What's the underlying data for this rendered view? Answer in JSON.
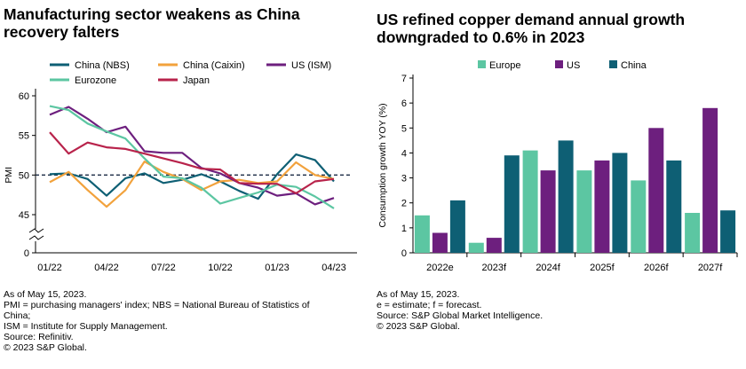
{
  "chart_data": [
    {
      "type": "line",
      "title_lines": [
        "Manufacturing sector weakens as China",
        "recovery falters"
      ],
      "ylabel": "PMI",
      "ylim": [
        40,
        60
      ],
      "y_ticks": [
        45,
        50,
        55,
        60
      ],
      "y_zero_label": "0",
      "axis_break": true,
      "reference_line": 50,
      "x_labels": [
        "01/22",
        "04/22",
        "07/22",
        "10/22",
        "01/23",
        "04/23"
      ],
      "x_label_indices": [
        0,
        3,
        6,
        9,
        12,
        15
      ],
      "legend": "top",
      "series": [
        {
          "name": "China (NBS)",
          "color": "#0e5f74",
          "values": [
            50.1,
            50.2,
            49.5,
            47.4,
            49.6,
            50.2,
            49.0,
            49.4,
            50.1,
            49.2,
            48.0,
            47.0,
            50.1,
            52.6,
            51.9,
            49.2
          ]
        },
        {
          "name": "China (Caixin)",
          "color": "#f2a23c",
          "values": [
            49.1,
            50.4,
            48.1,
            46.0,
            48.1,
            51.7,
            50.4,
            49.5,
            48.1,
            49.2,
            49.4,
            49.0,
            49.2,
            51.6,
            50.0,
            49.5
          ]
        },
        {
          "name": "US (ISM)",
          "color": "#6d1f7e",
          "values": [
            57.6,
            58.6,
            57.1,
            55.4,
            56.1,
            53.0,
            52.8,
            52.8,
            50.9,
            50.2,
            49.0,
            48.4,
            47.4,
            47.7,
            46.3,
            47.1
          ]
        },
        {
          "name": "Eurozone",
          "color": "#5cc6a2",
          "values": [
            58.7,
            58.2,
            56.5,
            55.5,
            54.6,
            52.1,
            49.8,
            49.6,
            48.4,
            46.4,
            47.1,
            47.8,
            48.8,
            48.5,
            47.3,
            45.8
          ]
        },
        {
          "name": "Japan",
          "color": "#b8234b",
          "values": [
            55.4,
            52.7,
            54.1,
            53.5,
            53.3,
            52.7,
            52.1,
            51.5,
            50.8,
            50.7,
            49.0,
            48.9,
            48.9,
            47.7,
            49.2,
            49.5
          ]
        }
      ]
    },
    {
      "type": "bar",
      "title_lines": [
        "US refined copper demand annual growth",
        "downgraded to 0.6% in 2023"
      ],
      "ylabel": "Consumption growth YOY (%)",
      "ylim": [
        0,
        7
      ],
      "y_ticks": [
        0,
        1,
        2,
        3,
        4,
        5,
        6,
        7
      ],
      "legend": "top",
      "categories": [
        "2022e",
        "2023f",
        "2024f",
        "2025f",
        "2026f",
        "2027f"
      ],
      "series": [
        {
          "name": "Europe",
          "color": "#5cc6a2",
          "values": [
            1.5,
            0.4,
            4.1,
            3.3,
            2.9,
            1.6
          ]
        },
        {
          "name": "US",
          "color": "#6d1f7e",
          "values": [
            0.8,
            0.6,
            3.3,
            3.7,
            5.0,
            5.8
          ]
        },
        {
          "name": "China",
          "color": "#0e5f74",
          "values": [
            2.1,
            3.9,
            4.5,
            4.0,
            3.7,
            1.7
          ]
        }
      ]
    }
  ],
  "notes": {
    "left": [
      "As of May 15, 2023.",
      "PMI = purchasing managers' index; NBS = National Bureau of Statistics of",
      "China;",
      "ISM = Institute for Supply Management.",
      "Source: Refinitiv.",
      "© 2023 S&P Global."
    ],
    "right": [
      "As of May 15, 2023.",
      "e = estimate; f = forecast.",
      "Source: S&P Global Market Intelligence.",
      "© 2023 S&P Global."
    ]
  }
}
